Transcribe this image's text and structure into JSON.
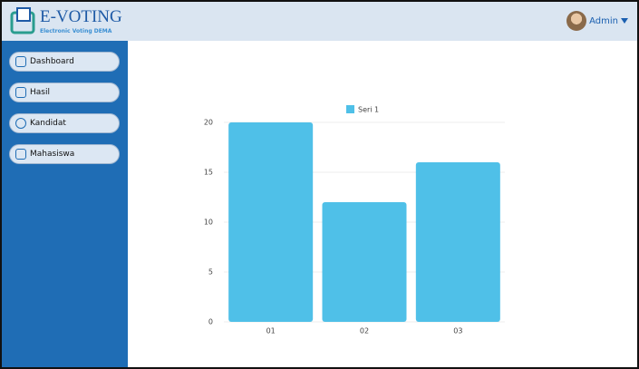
{
  "header": {
    "logo_title": "E-VOTING",
    "logo_subtitle": "Electronic Voting DEMA",
    "user": "Admin"
  },
  "sidebar": {
    "menu": [
      "Dashboard",
      "Hasil",
      "Kandidat",
      "Mahasiswa"
    ]
  },
  "chart_data": {
    "type": "bar",
    "categories": [
      "01",
      "02",
      "03"
    ],
    "series": [
      {
        "name": "Seri 1",
        "color": "#4fc0e8",
        "values": [
          20,
          12,
          16
        ]
      }
    ],
    "ylim": [
      0,
      20
    ],
    "yticks": [
      0,
      5,
      10,
      15,
      20
    ],
    "grid": true,
    "legend": "top"
  }
}
